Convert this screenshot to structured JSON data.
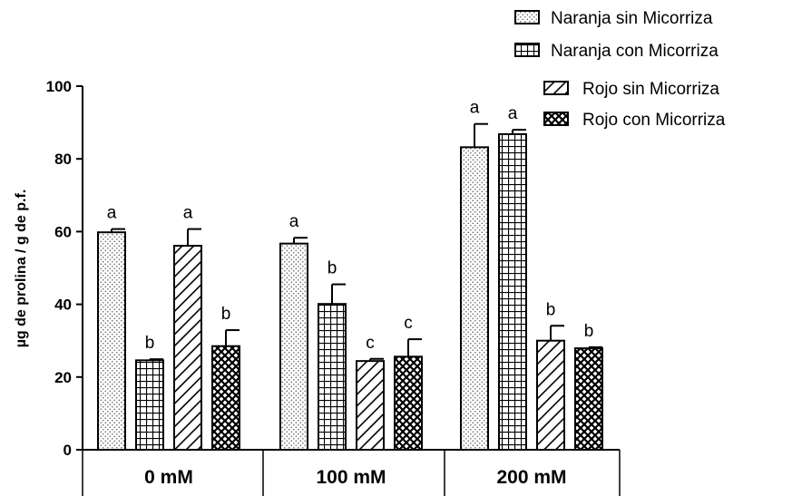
{
  "chart_data": {
    "type": "bar",
    "title": "",
    "xlabel": "",
    "ylabel": "µg de prolina / g de p.f.",
    "ylim": [
      0,
      100
    ],
    "yticks": [
      0,
      20,
      40,
      60,
      80,
      100
    ],
    "grid": false,
    "legend_position": "top-right",
    "categories": [
      "0 mM",
      "100 mM",
      "200 mM"
    ],
    "series": [
      {
        "name": "Naranja sin Micorriza",
        "pattern": "dots",
        "values": [
          59.8,
          56.7,
          83.2
        ],
        "errors": [
          0.9,
          1.6,
          6.4
        ],
        "labels": [
          "a",
          "a",
          "a"
        ]
      },
      {
        "name": "Naranja con Micorriza",
        "pattern": "grid",
        "values": [
          24.6,
          40.1,
          86.8
        ],
        "errors": [
          0.3,
          5.4,
          1.2
        ],
        "labels": [
          "b",
          "b",
          "a"
        ]
      },
      {
        "name": "Rojo sin Micorriza",
        "pattern": "diagonal",
        "values": [
          56.1,
          24.4,
          30.0
        ],
        "errors": [
          4.6,
          0.6,
          4.1
        ],
        "labels": [
          "a",
          "c",
          "b"
        ]
      },
      {
        "name": "Rojo con Micorriza",
        "pattern": "crosshatch",
        "values": [
          28.5,
          25.6,
          27.9
        ],
        "errors": [
          4.4,
          4.8,
          0.3
        ],
        "labels": [
          "b",
          "c",
          "b"
        ]
      }
    ]
  }
}
